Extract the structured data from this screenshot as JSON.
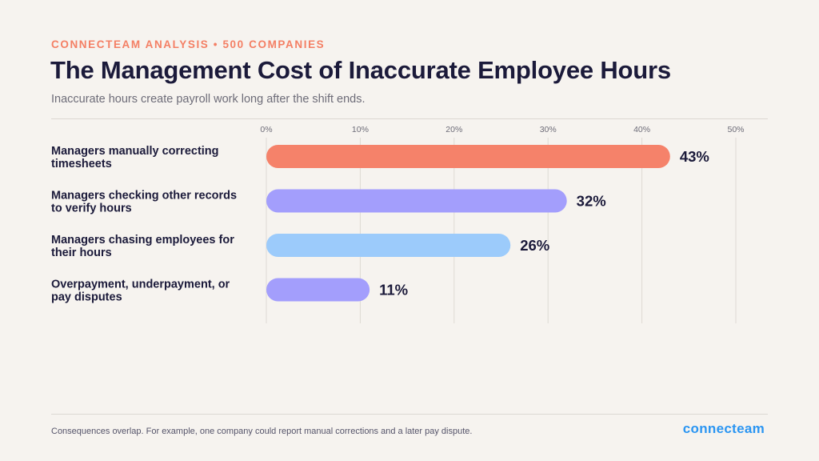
{
  "header": {
    "kicker": "CONNECTEAM ANALYSIS • 500 COMPANIES",
    "title": "The Management Cost of Inaccurate Employee Hours",
    "subtitle": "Inaccurate hours create payroll work long after the shift ends."
  },
  "chart_data": {
    "type": "bar",
    "orientation": "horizontal",
    "title": "The Management Cost of Inaccurate Employee Hours",
    "subtitle": "Inaccurate hours create payroll work long after the shift ends.",
    "categories": [
      [
        "Managers manually correcting",
        "timesheets"
      ],
      [
        "Managers checking other records",
        "to verify hours"
      ],
      [
        "Managers chasing employees for",
        "their hours"
      ],
      [
        "Overpayment, underpayment, or",
        "pay disputes"
      ]
    ],
    "values": [
      43,
      32,
      26,
      11
    ],
    "value_labels": [
      "43%",
      "32%",
      "26%",
      "11%"
    ],
    "bar_colors": [
      "#f5826a",
      "#a39efc",
      "#9ccbfb",
      "#a39efc"
    ],
    "xlim": [
      0,
      50
    ],
    "ticks": [
      0,
      10,
      20,
      30,
      40,
      50
    ],
    "tick_labels": [
      "0%",
      "10%",
      "20%",
      "30%",
      "40%",
      "50%"
    ],
    "xlabel": "",
    "ylabel": "",
    "grid": true,
    "axis_position": "top",
    "legend": "none"
  },
  "footer": {
    "note": "Consequences overlap. For example, one company could report manual corrections and a later pay dispute.",
    "logo_text": "connecteam",
    "logo_color": "#2a95f2"
  }
}
